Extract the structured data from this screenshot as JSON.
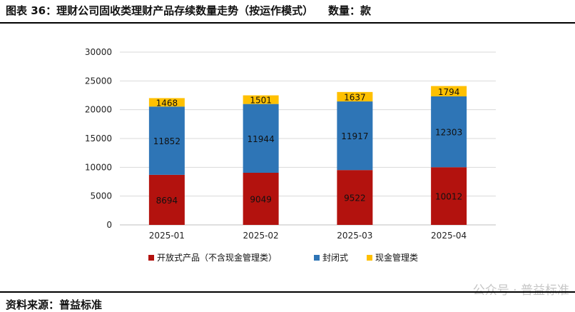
{
  "title": "图表 36：理财公司固收类理财产品存续数量走势（按运作模式）    数量：款",
  "source": "资料来源：普益标准",
  "watermark": "公众号 · 普益标准",
  "chart_data": {
    "type": "bar",
    "stacked": true,
    "categories": [
      "2025-01",
      "2025-02",
      "2025-03",
      "2025-04"
    ],
    "series": [
      {
        "name": "开放式产品（不含现金管理类）",
        "color": "#B3120E",
        "values": [
          8694,
          9049,
          9522,
          10012
        ]
      },
      {
        "name": "封闭式",
        "color": "#2E75B6",
        "values": [
          11852,
          11944,
          11917,
          12303
        ]
      },
      {
        "name": "现金管理类",
        "color": "#FFC000",
        "values": [
          1468,
          1501,
          1637,
          1794
        ]
      }
    ],
    "ylim": [
      0,
      30000
    ],
    "yticks": [
      0,
      5000,
      10000,
      15000,
      20000,
      25000,
      30000
    ],
    "grid": true,
    "legend": "bottom"
  }
}
